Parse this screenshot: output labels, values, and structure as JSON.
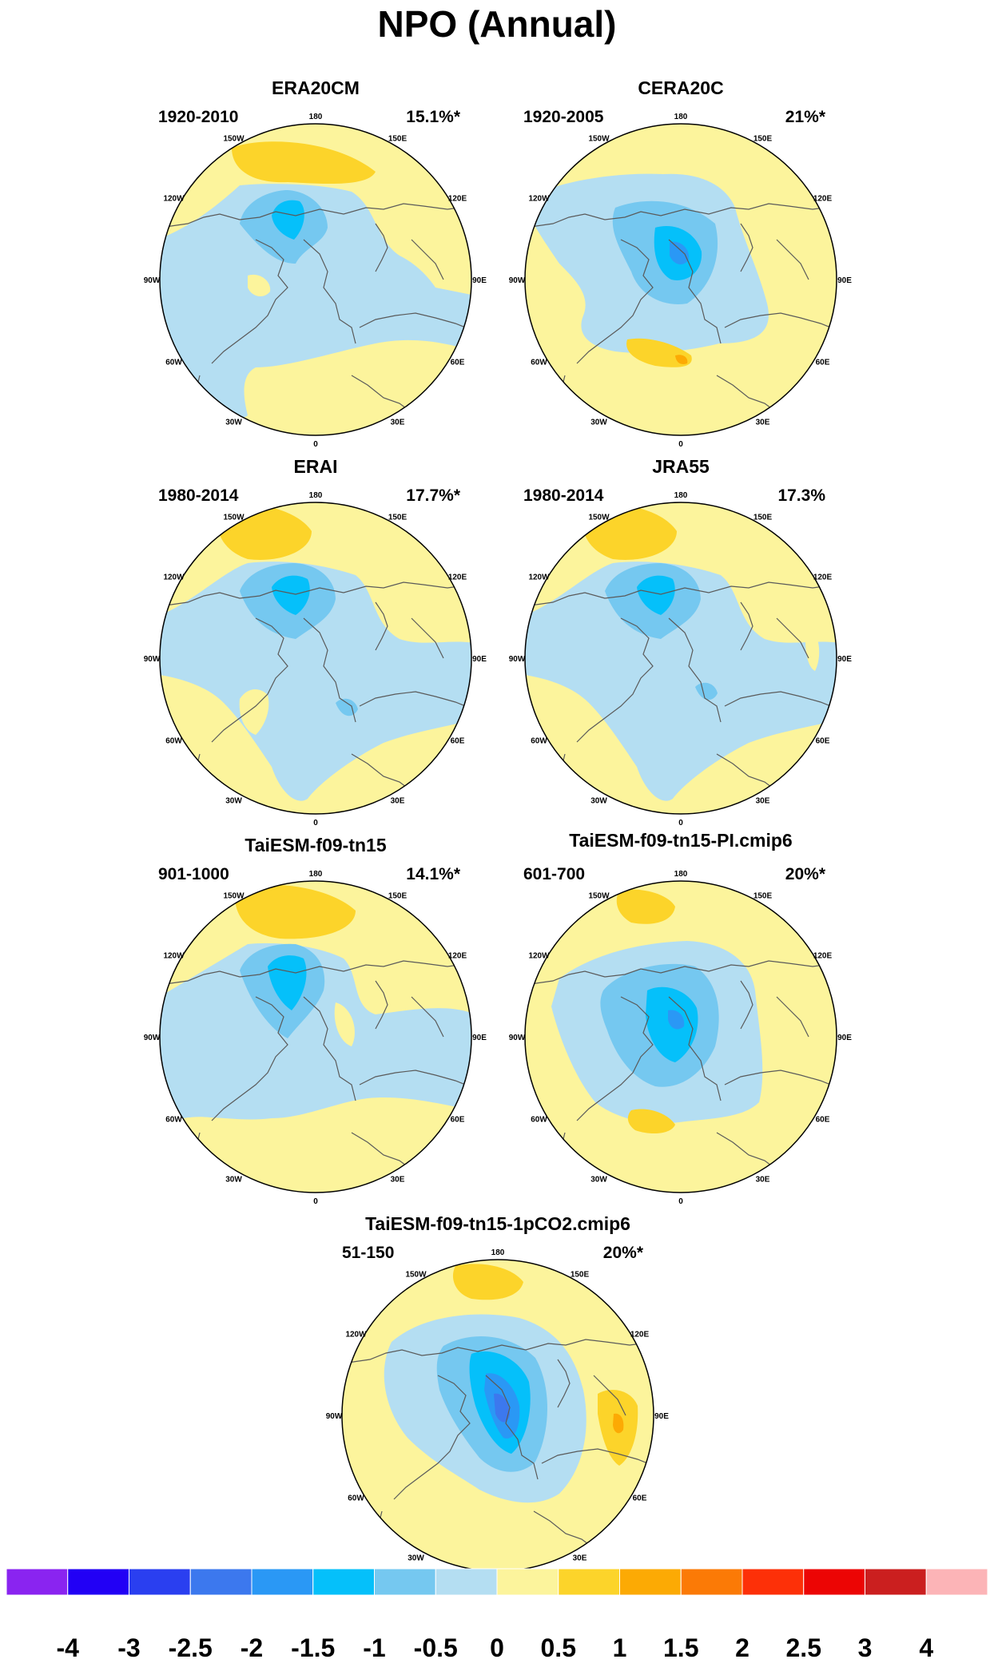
{
  "title": "NPO (Annual)",
  "lon_labels": [
    "180",
    "150E",
    "120E",
    "90E",
    "60E",
    "30E",
    "0",
    "30W",
    "60W",
    "90W",
    "120W",
    "150W"
  ],
  "panels": [
    {
      "name": "ERA20CM",
      "period": "1920-2010",
      "variance": "15.1%*"
    },
    {
      "name": "CERA20C",
      "period": "1920-2005",
      "variance": "21%*"
    },
    {
      "name": "ERAI",
      "period": "1980-2014",
      "variance": "17.7%*"
    },
    {
      "name": "JRA55",
      "period": "1980-2014",
      "variance": "17.3%"
    },
    {
      "name": "TaiESM-f09-tn15",
      "period": "901-1000",
      "variance": "14.1%*"
    },
    {
      "name": "TaiESM-f09-tn15-PI.cmip6",
      "period": "601-700",
      "variance": "20%*"
    },
    {
      "name": "TaiESM-f09-tn15-1pCO2.cmip6",
      "period": "51-150",
      "variance": "20%*"
    }
  ],
  "colorbar": {
    "colors": [
      "#8a24f0",
      "#2200f5",
      "#2a3ff0",
      "#3c78ee",
      "#2a98f5",
      "#05c0fa",
      "#75c8f0",
      "#b4def2",
      "#fcf49c",
      "#fcd42a",
      "#fcaa04",
      "#fb7a06",
      "#fd3008",
      "#ec0504",
      "#cb1f1f",
      "#fcb4b7"
    ],
    "labels": [
      "-4",
      "-3",
      "-2.5",
      "-2",
      "-1.5",
      "-1",
      "-0.5",
      "0",
      "0.5",
      "1",
      "1.5",
      "2",
      "2.5",
      "3",
      "4"
    ]
  },
  "colors": {
    "land_outline": "#5a5a5a",
    "rim": "#000000"
  }
}
